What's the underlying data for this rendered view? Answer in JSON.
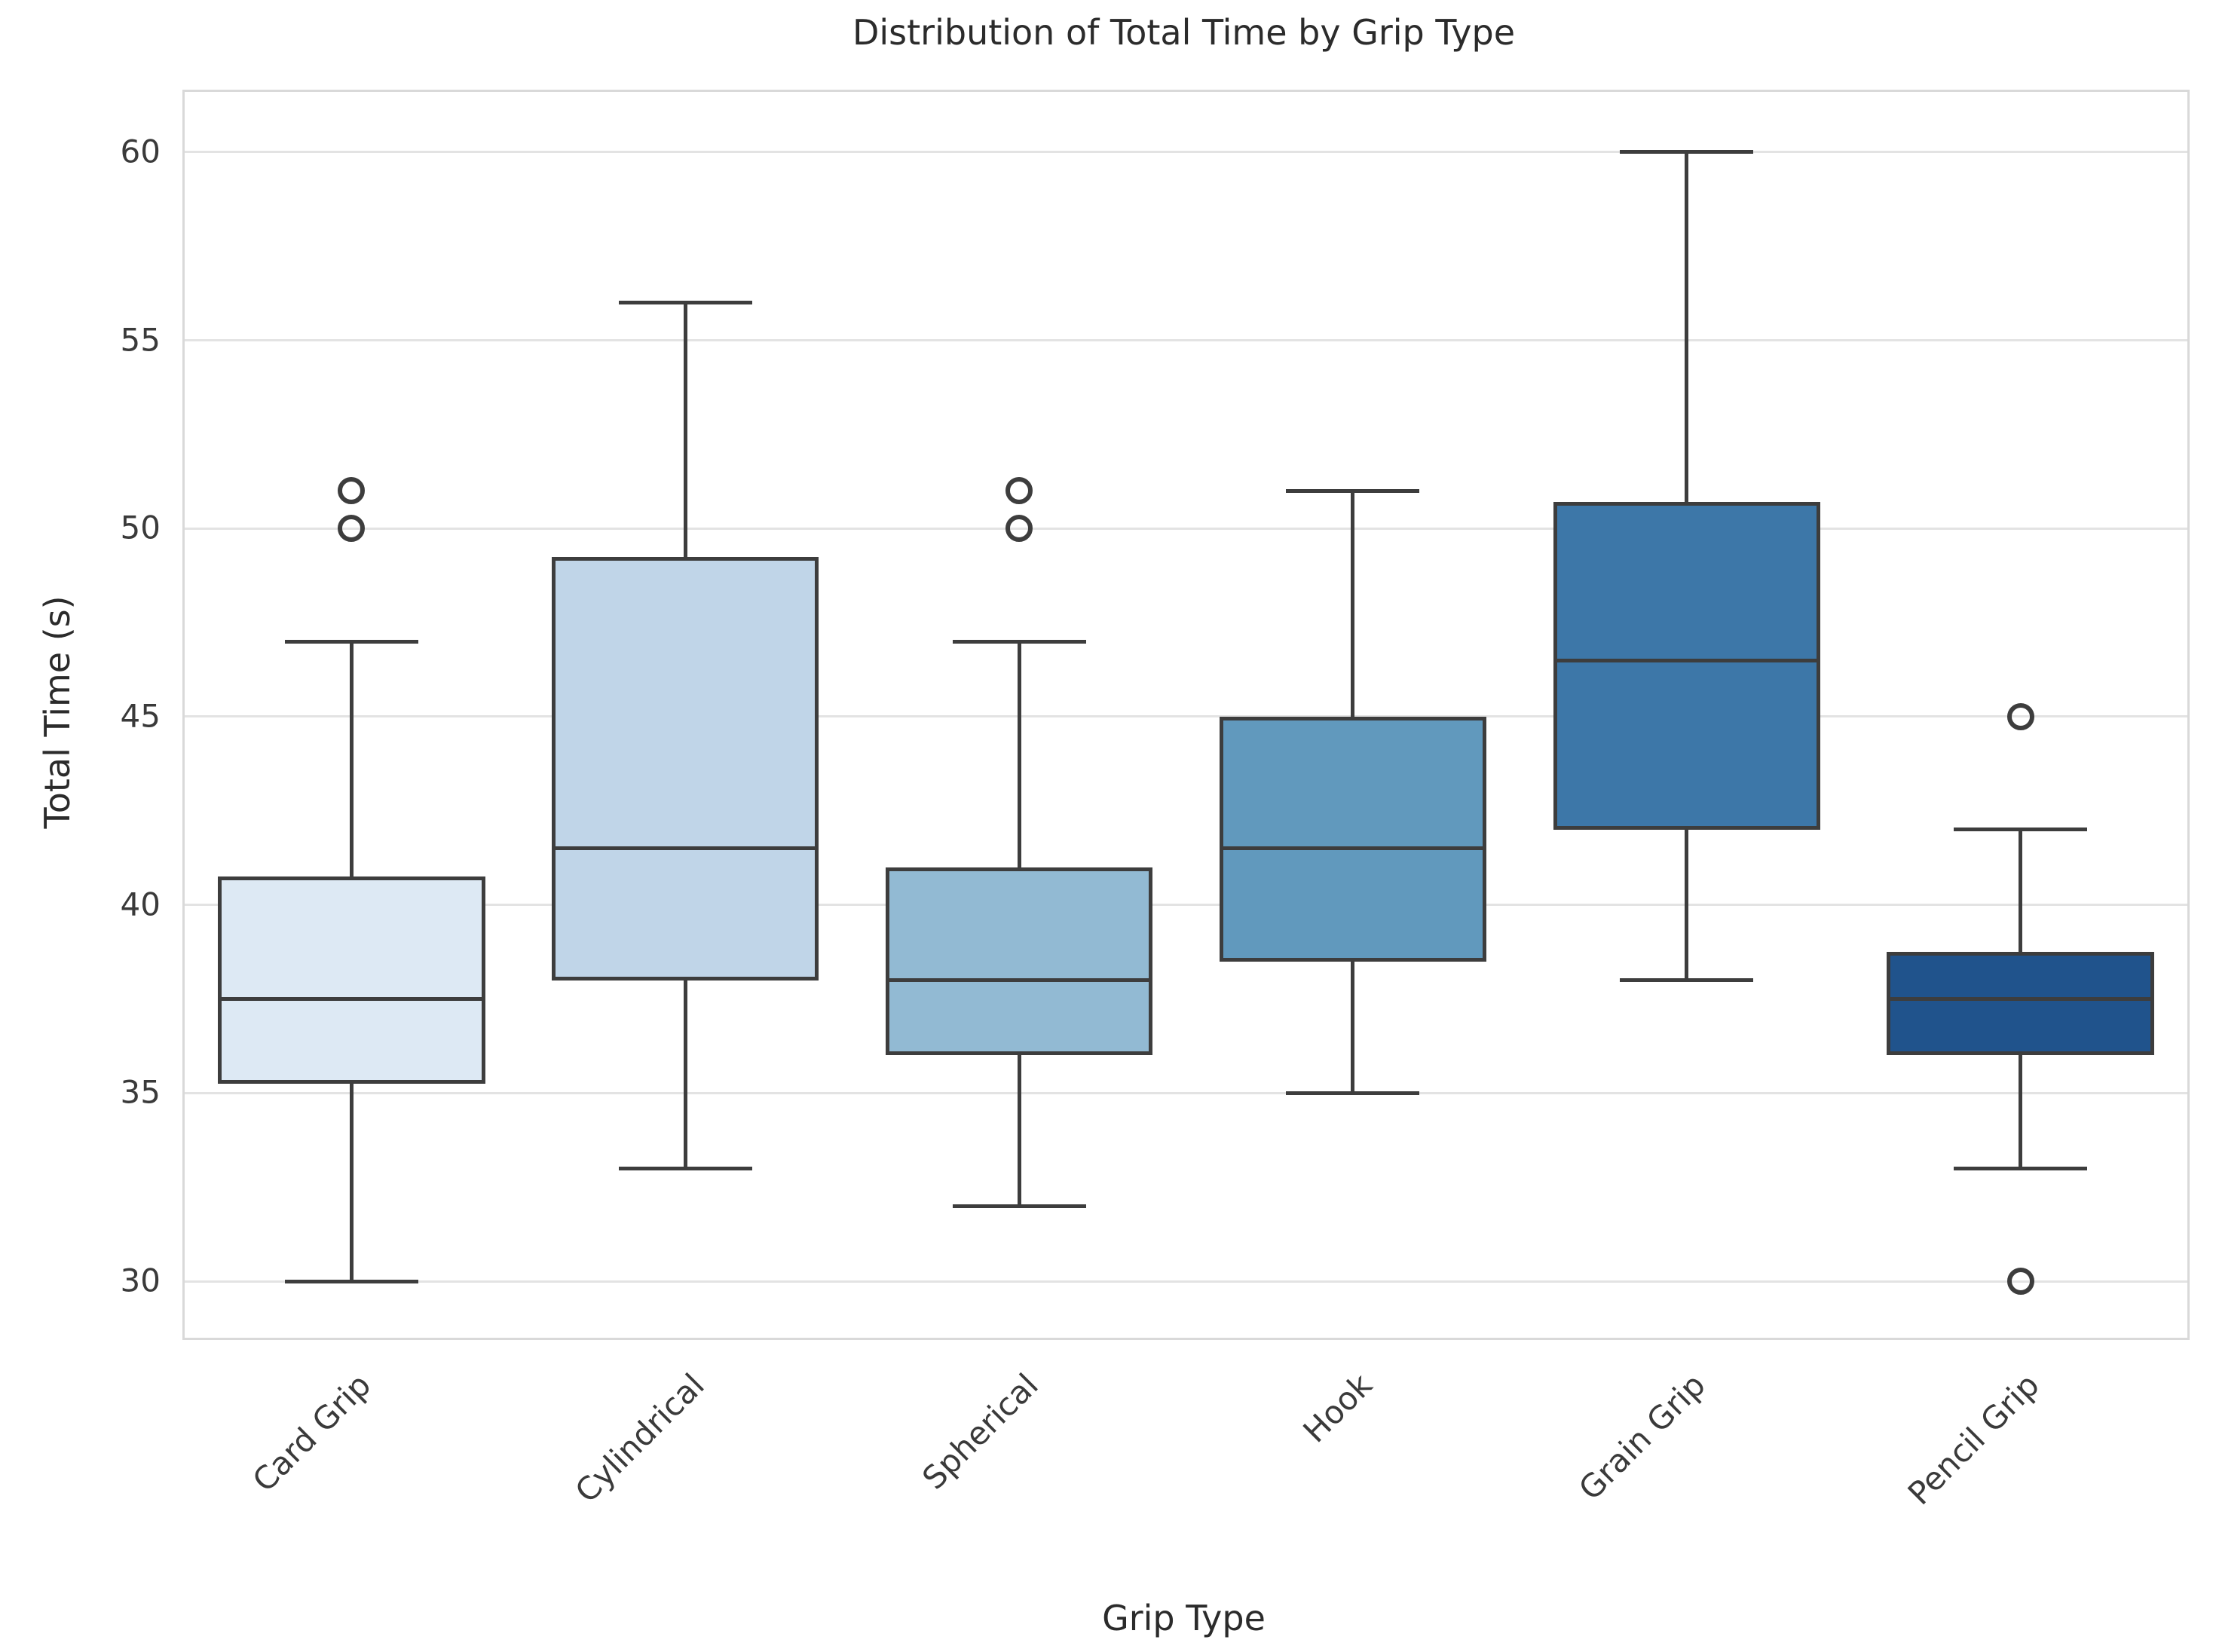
{
  "chart_data": {
    "type": "boxplot",
    "title": "Distribution of Total Time by Grip Type",
    "xlabel": "Grip Type",
    "ylabel": "Total Time (s)",
    "categories": [
      "Card Grip",
      "Cylindrical",
      "Spherical",
      "Hook",
      "Grain Grip",
      "Pencil Grip"
    ],
    "series": [
      {
        "name": "Card Grip",
        "whislo": 30,
        "q1": 35.25,
        "med": 37.5,
        "q3": 40.75,
        "whishi": 47,
        "outliers": [
          50,
          51
        ],
        "fill": "#dde9f4"
      },
      {
        "name": "Cylindrical",
        "whislo": 33,
        "q1": 38,
        "med": 41.5,
        "q3": 49.25,
        "whishi": 56,
        "outliers": [],
        "fill": "#c0d5e8"
      },
      {
        "name": "Spherical",
        "whislo": 32,
        "q1": 36,
        "med": 38,
        "q3": 41,
        "whishi": 47,
        "outliers": [
          50,
          51
        ],
        "fill": "#92bad3"
      },
      {
        "name": "Hook",
        "whislo": 35,
        "q1": 38.5,
        "med": 41.5,
        "q3": 45,
        "whishi": 51,
        "outliers": [],
        "fill": "#6199bd"
      },
      {
        "name": "Grain Grip",
        "whislo": 38,
        "q1": 42,
        "med": 46.5,
        "q3": 50.7,
        "whishi": 60,
        "outliers": [],
        "fill": "#3d77a8"
      },
      {
        "name": "Pencil Grip",
        "whislo": 33,
        "q1": 36,
        "med": 37.5,
        "q3": 38.75,
        "whishi": 42,
        "outliers": [
          45,
          30
        ],
        "fill": "#20538c"
      }
    ],
    "yticks": [
      30,
      35,
      40,
      45,
      50,
      55,
      60
    ],
    "ylim": [
      28.5,
      61.6
    ],
    "grid": true,
    "legend": "none",
    "box_width_fraction": 0.8,
    "cap_width_fraction": 0.4,
    "styles": {
      "line_color": "#3d3d3d",
      "grid_color": "#e3e3e3",
      "spine_color": "#d9d9d9",
      "text_color": "#2b2b2b",
      "tick_text_color": "#3a3a3a",
      "background": "#ffffff"
    }
  }
}
